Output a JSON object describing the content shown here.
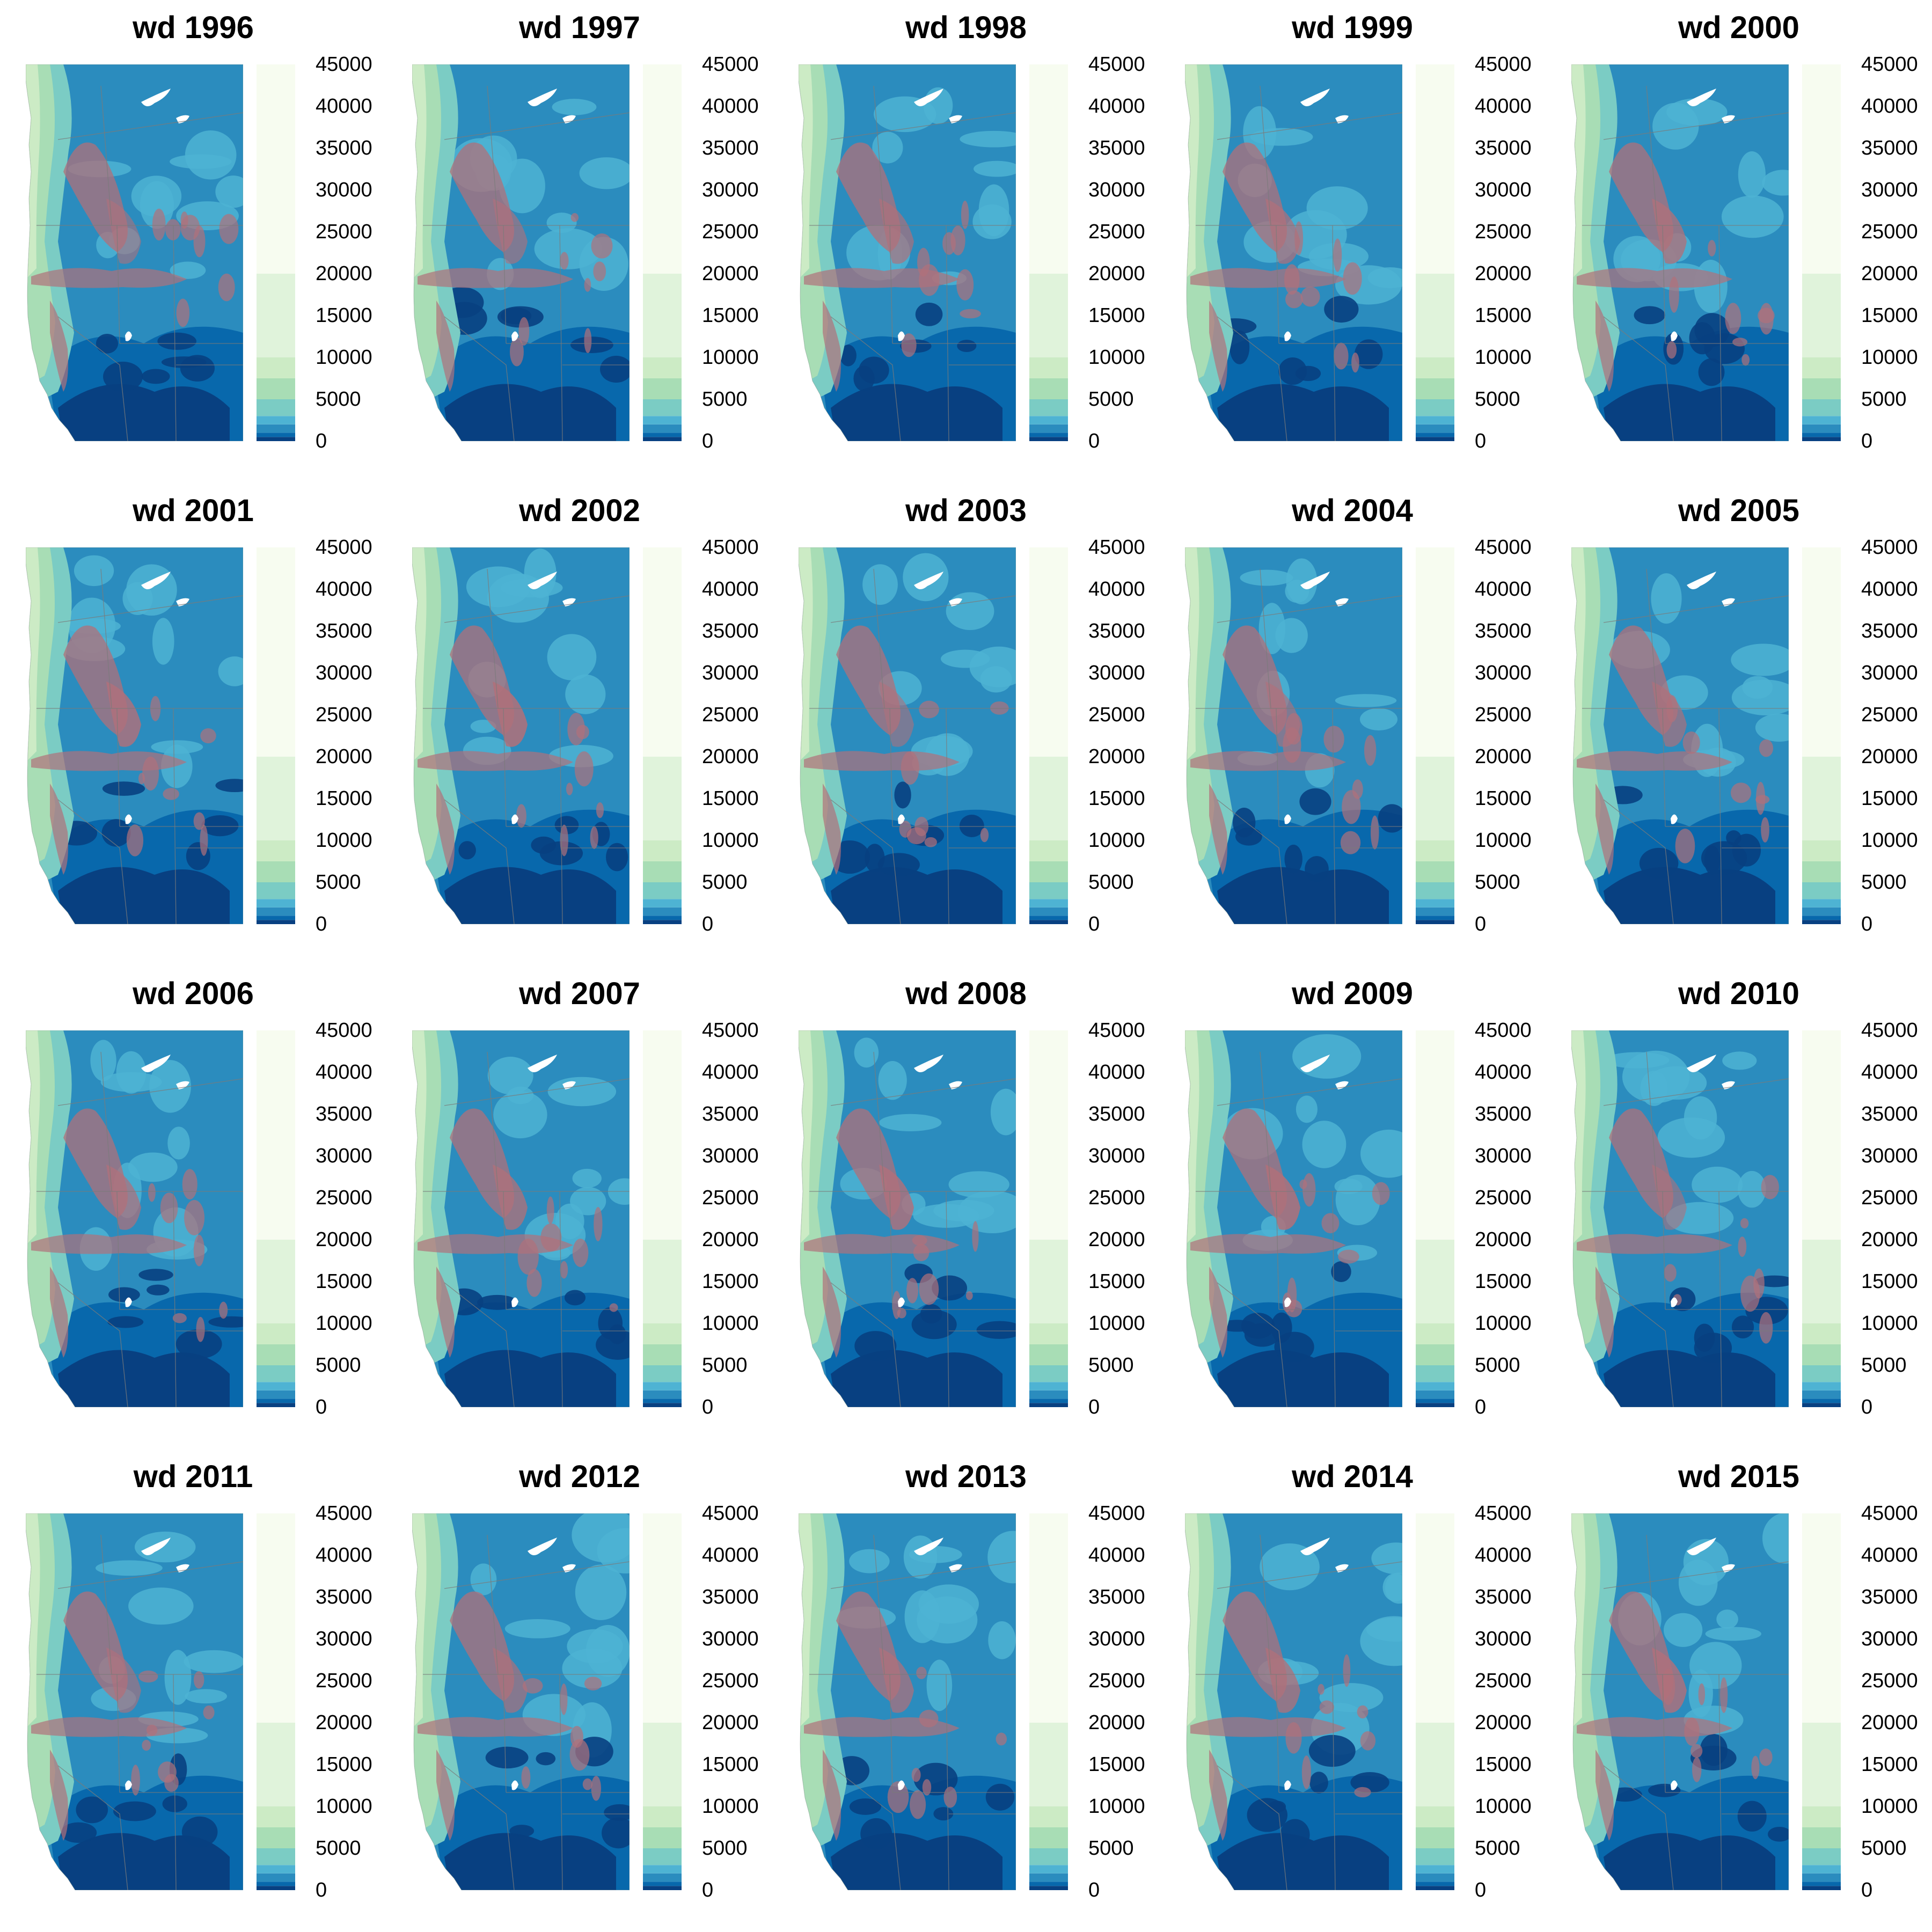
{
  "figure": {
    "panel_title_prefix": "wd",
    "years": [
      "1996",
      "1997",
      "1998",
      "1999",
      "2000",
      "2001",
      "2002",
      "2003",
      "2004",
      "2005",
      "2006",
      "2007",
      "2008",
      "2009",
      "2010",
      "2011",
      "2012",
      "2013",
      "2014",
      "2015"
    ]
  },
  "legend": {
    "ticks": [
      "45000",
      "40000",
      "35000",
      "30000",
      "25000",
      "20000",
      "15000",
      "10000",
      "5000",
      "0"
    ],
    "bins": [
      {
        "from": 0,
        "to": 500,
        "color": "#084081"
      },
      {
        "from": 500,
        "to": 1000,
        "color": "#0868ac"
      },
      {
        "from": 1000,
        "to": 2000,
        "color": "#2b8cbe"
      },
      {
        "from": 2000,
        "to": 3000,
        "color": "#4eb3d3"
      },
      {
        "from": 3000,
        "to": 5000,
        "color": "#7bccc4"
      },
      {
        "from": 5000,
        "to": 7500,
        "color": "#a8ddb5"
      },
      {
        "from": 7500,
        "to": 10000,
        "color": "#ccebc5"
      },
      {
        "from": 10000,
        "to": 20000,
        "color": "#e0f3db"
      },
      {
        "from": 20000,
        "to": 45000,
        "color": "#f7fcf0"
      }
    ],
    "range": [
      0,
      45000
    ]
  },
  "colors": {
    "ocean_white": "#ffffff",
    "mountain_overlay": "#b0707a",
    "state_borders": "#7a7a7a"
  },
  "chart_data": {
    "type": "heatmap",
    "panels": [
      {
        "title": "wd 1996",
        "year": 1996
      },
      {
        "title": "wd 1997",
        "year": 1997
      },
      {
        "title": "wd 1998",
        "year": 1998
      },
      {
        "title": "wd 1999",
        "year": 1999
      },
      {
        "title": "wd 2000",
        "year": 2000
      },
      {
        "title": "wd 2001",
        "year": 2001
      },
      {
        "title": "wd 2002",
        "year": 2002
      },
      {
        "title": "wd 2003",
        "year": 2003
      },
      {
        "title": "wd 2004",
        "year": 2004
      },
      {
        "title": "wd 2005",
        "year": 2005
      },
      {
        "title": "wd 2006",
        "year": 2006
      },
      {
        "title": "wd 2007",
        "year": 2007
      },
      {
        "title": "wd 2008",
        "year": 2008
      },
      {
        "title": "wd 2009",
        "year": 2009
      },
      {
        "title": "wd 2010",
        "year": 2010
      },
      {
        "title": "wd 2011",
        "year": 2011
      },
      {
        "title": "wd 2012",
        "year": 2012
      },
      {
        "title": "wd 2013",
        "year": 2013
      },
      {
        "title": "wd 2014",
        "year": 2014
      },
      {
        "title": "wd 2015",
        "year": 2015
      }
    ],
    "legend_ticks": [
      0,
      5000,
      10000,
      15000,
      20000,
      25000,
      30000,
      35000,
      40000,
      45000
    ],
    "legend_placement": "right of each panel",
    "grid": false
  }
}
